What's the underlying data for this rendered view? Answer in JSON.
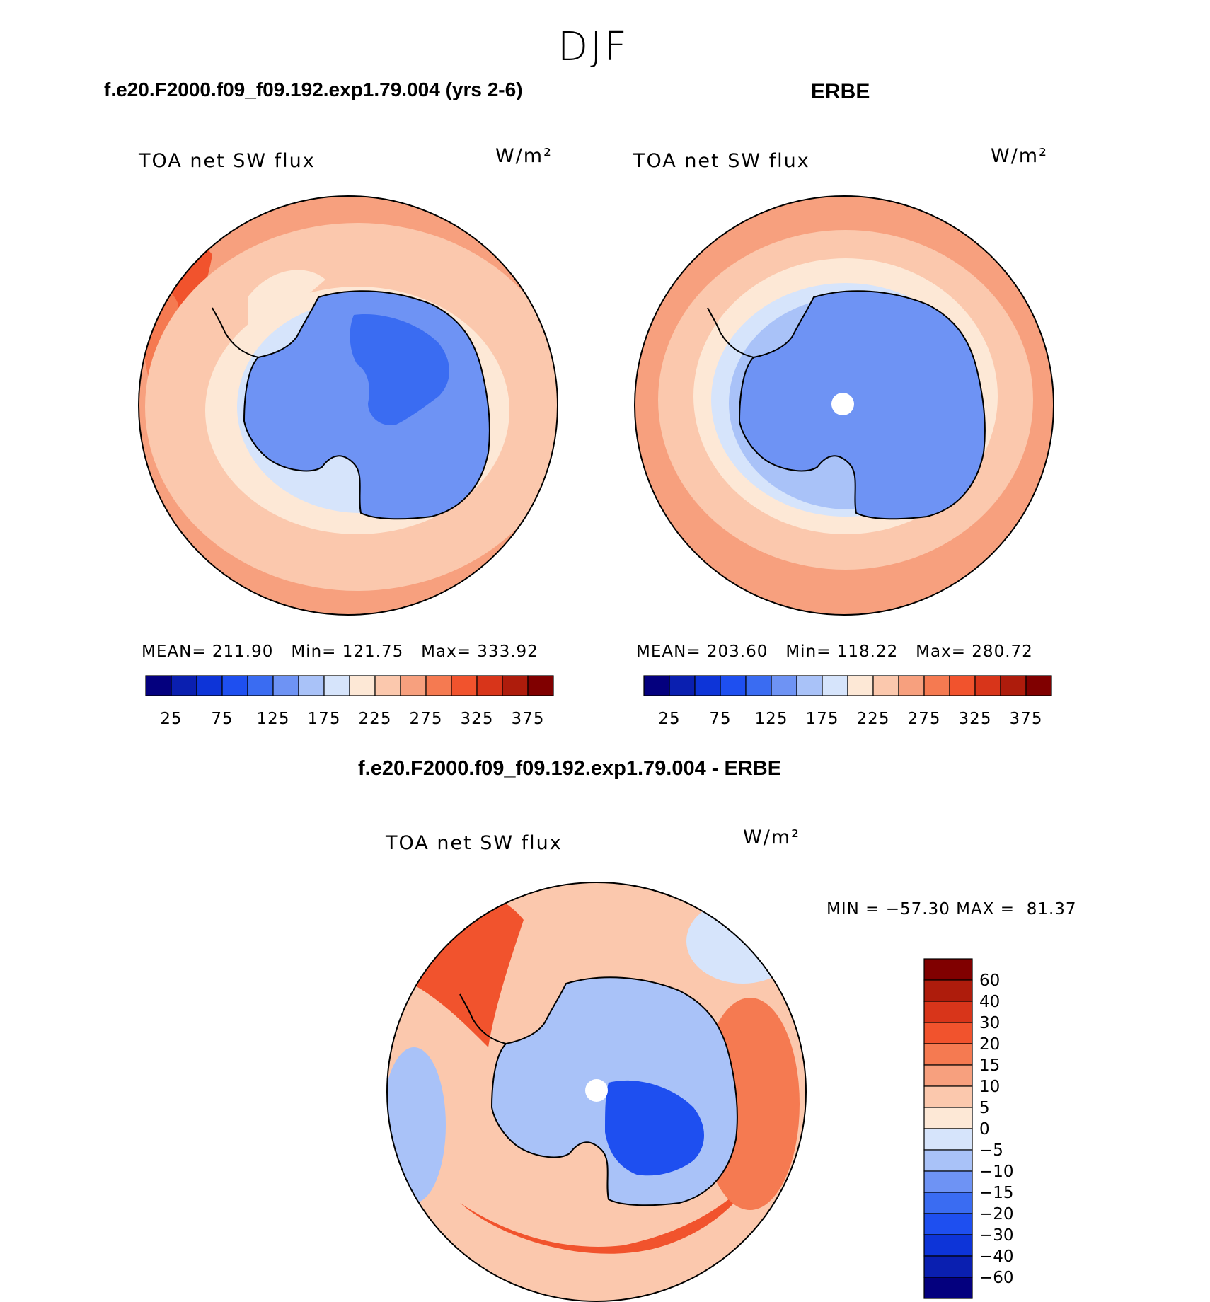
{
  "page": {
    "title": "DJF"
  },
  "colors": {
    "abs_scale": [
      "#04007e",
      "#0a1fb0",
      "#0d34d8",
      "#1e4ff0",
      "#3a6cf2",
      "#6e93f4",
      "#a9c2f8",
      "#d6e4fb",
      "#fde8d6",
      "#fbc8ad",
      "#f7a07e",
      "#f57a51",
      "#f1532d",
      "#d8351a",
      "#ae1c0c",
      "#800000"
    ],
    "diff_scale": [
      "#04007e",
      "#0a1fb0",
      "#0d34d8",
      "#1e4ff0",
      "#3a6cf2",
      "#6e93f4",
      "#a9c2f8",
      "#d6e4fb",
      "#fde8d6",
      "#fbc8ad",
      "#f7a07e",
      "#f57a51",
      "#f1532d",
      "#d8351a",
      "#ae1c0c",
      "#800000"
    ]
  },
  "chart_data": [
    {
      "type": "heatmap",
      "projection": "south-polar-stereographic",
      "title": "f.e20.F2000.f09_f09.192.exp1.79.004 (yrs 2-6)",
      "variable": "TOA net SW flux",
      "units": "W/m²",
      "stats": {
        "mean_label": "MEAN=",
        "mean": "211.90",
        "min_label": "Min=",
        "min": "121.75",
        "max_label": "Max=",
        "max": "333.92"
      },
      "colorbar": {
        "orientation": "horizontal",
        "tick_labels": [
          "25",
          "75",
          "125",
          "175",
          "225",
          "275",
          "325",
          "375"
        ],
        "levels": [
          25,
          50,
          75,
          100,
          125,
          150,
          175,
          200,
          225,
          250,
          275,
          300,
          325,
          350,
          375
        ]
      }
    },
    {
      "type": "heatmap",
      "projection": "south-polar-stereographic",
      "title": "ERBE",
      "variable": "TOA net SW flux",
      "units": "W/m²",
      "stats": {
        "mean_label": "MEAN=",
        "mean": "203.60",
        "min_label": "Min=",
        "min": "118.22",
        "max_label": "Max=",
        "max": "280.72"
      },
      "colorbar": {
        "orientation": "horizontal",
        "tick_labels": [
          "25",
          "75",
          "125",
          "175",
          "225",
          "275",
          "325",
          "375"
        ],
        "levels": [
          25,
          50,
          75,
          100,
          125,
          150,
          175,
          200,
          225,
          250,
          275,
          300,
          325,
          350,
          375
        ]
      }
    },
    {
      "type": "heatmap",
      "projection": "south-polar-stereographic",
      "title": "f.e20.F2000.f09_f09.192.exp1.79.004 - ERBE",
      "variable": "TOA net SW flux",
      "units": "W/m²",
      "stats": {
        "text": "MIN = −57.30 MAX =  81.37"
      },
      "colorbar": {
        "orientation": "vertical",
        "tick_labels": [
          "60",
          "40",
          "30",
          "20",
          "15",
          "10",
          "5",
          "0",
          "−5",
          "−10",
          "−15",
          "−20",
          "−30",
          "−40",
          "−60"
        ]
      }
    }
  ]
}
